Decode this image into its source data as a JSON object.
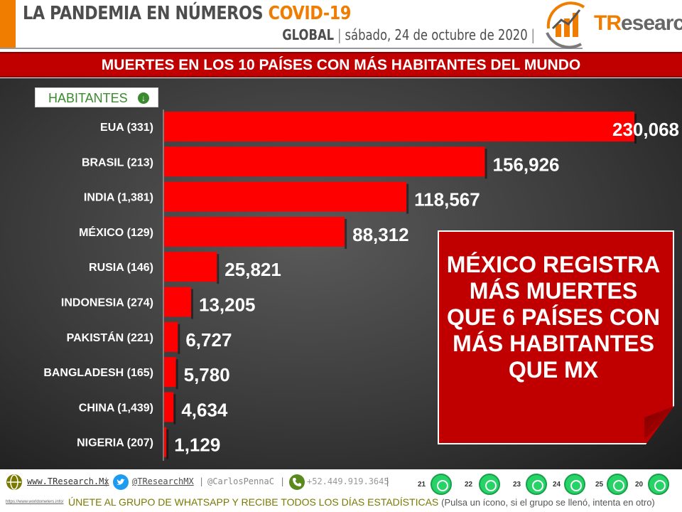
{
  "header": {
    "title_main": "LA PANDEMIA EN NÚMEROS ",
    "title_accent": "COVID-19",
    "region": "GLOBAL",
    "date": "sábado, 24 de octubre de 2020",
    "logo_prefix": "TR",
    "logo_suffix": "esearch"
  },
  "banner": {
    "text": "MUERTES EN LOS 10 PAÍSES CON MÁS HABITANTES DEL MUNDO"
  },
  "legend": {
    "label": "HABITANTES",
    "icon": "arrow-down-circle-icon"
  },
  "chart_data": {
    "type": "bar",
    "orientation": "horizontal",
    "categories": [
      "EUA (331)",
      "BRASIL (213)",
      "INDIA (1,381)",
      "MÉXICO (129)",
      "RUSIA (146)",
      "INDONESIA (274)",
      "PAKISTÁN (221)",
      "BANGLADESH (165)",
      "CHINA (1,439)",
      "NIGERIA (207)"
    ],
    "values": [
      230068,
      156926,
      118567,
      88312,
      25821,
      13205,
      6727,
      5780,
      4634,
      1129
    ],
    "value_labels": [
      "230,068",
      "156,926",
      "118,567",
      "88,312",
      "25,821",
      "13,205",
      "6,727",
      "5,780",
      "4,634",
      "1,129"
    ],
    "xlim": [
      0,
      230068
    ],
    "grid": false,
    "bar_color": "#ff0000"
  },
  "callout": {
    "lines": [
      "MÉXICO REGISTRA",
      "MÁS MUERTES",
      "QUE 6 PAÍSES CON",
      "MÁS HABITANTES",
      "QUE MX"
    ]
  },
  "footer": {
    "website": "www.TResearch.Mx",
    "website_accent": "TR",
    "twitter": "@TResearchMX",
    "twitter2": "@CarlosPennaC",
    "phone": "+52.449.919.3645",
    "whatsapp_groups": [
      "21",
      "22",
      "23",
      "24",
      "25",
      "20"
    ],
    "small_link": "https://www.worldometers.info/",
    "cta": "ÚNETE AL GRUPO DE WHATSAPP Y RECIBE TODOS LOS DÍAS ESTADÍSTICAS",
    "cta_note": "(Pulsa un ícono, si el grupo se llenó, intenta en otro)"
  },
  "colors": {
    "accent": "#f07c00",
    "banner": "#c00000",
    "bar": "#ff0000",
    "legend_green": "#3a8a2e"
  }
}
